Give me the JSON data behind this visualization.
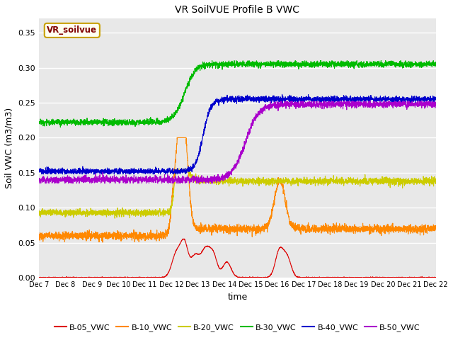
{
  "title": "VR SoilVUE Profile B VWC",
  "xlabel": "time",
  "ylabel": "Soil VWC (m3/m3)",
  "ylim": [
    0.0,
    0.37
  ],
  "yticks": [
    0.0,
    0.05,
    0.1,
    0.15,
    0.2,
    0.25,
    0.3,
    0.35
  ],
  "fig_bg_color": "#ffffff",
  "plot_bg_color": "#e8e8e8",
  "grid_color": "#ffffff",
  "legend_box_facecolor": "#fffff0",
  "legend_box_edgecolor": "#c8a000",
  "legend_label_color": "#800000",
  "series_colors": {
    "B-05_VWC": "#dd0000",
    "B-10_VWC": "#ff8800",
    "B-20_VWC": "#cccc00",
    "B-30_VWC": "#00bb00",
    "B-40_VWC": "#0000cc",
    "B-50_VWC": "#aa00cc"
  },
  "tick_days": [
    7,
    8,
    9,
    10,
    11,
    12,
    13,
    14,
    15,
    16,
    17,
    18,
    19,
    20,
    21,
    22
  ],
  "n_points": 3000
}
